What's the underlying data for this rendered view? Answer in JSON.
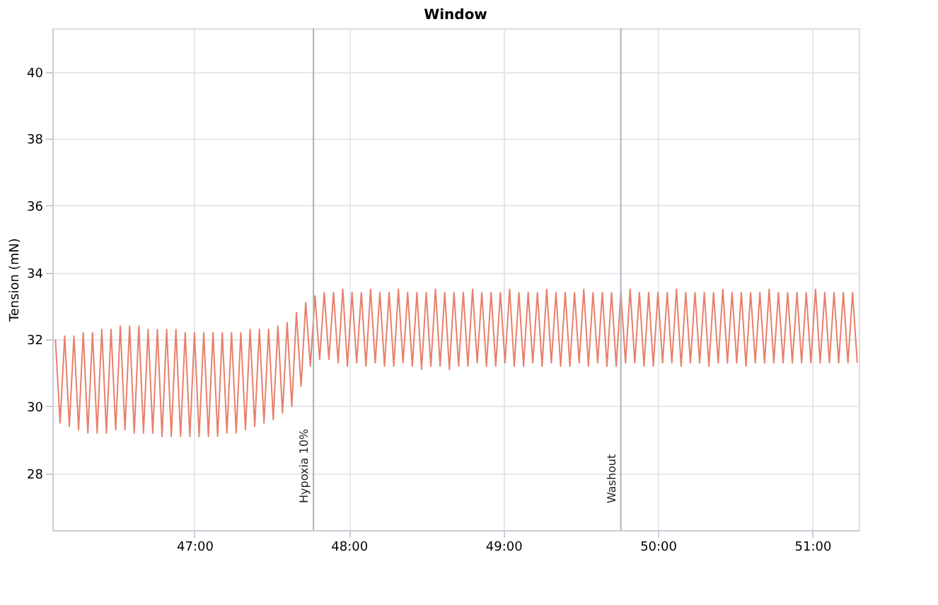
{
  "chart_data": {
    "type": "line",
    "title": "Window",
    "ylabel": "Tension (mN)",
    "xlim": [
      46.08,
      51.3
    ],
    "ylim": [
      26.3,
      41.3
    ],
    "xticks": [
      {
        "value": 47,
        "label": "47:00"
      },
      {
        "value": 48,
        "label": "48:00"
      },
      {
        "value": 49,
        "label": "49:00"
      },
      {
        "value": 50,
        "label": "50:00"
      },
      {
        "value": 51,
        "label": "51:00"
      }
    ],
    "yticks": [
      28,
      30,
      32,
      34,
      36,
      38,
      40
    ],
    "grid": true,
    "marker": "none",
    "line_style": "solid",
    "ref_lines": [
      {
        "axis": "x",
        "value": 47.77,
        "label": "Hypoxia 10%",
        "color": "#aab4be"
      },
      {
        "axis": "x",
        "value": 49.76,
        "label": "Washout",
        "color": "#aab4be"
      }
    ],
    "series": [
      {
        "color": "#e8806a",
        "x": [
          46.1,
          46.13,
          46.16,
          46.19,
          46.22,
          46.25,
          46.28,
          46.31,
          46.34,
          46.37,
          46.4,
          46.43,
          46.46,
          46.49,
          46.52,
          46.55,
          46.58,
          46.61,
          46.64,
          46.67,
          46.7,
          46.73,
          46.76,
          46.79,
          46.82,
          46.85,
          46.88,
          46.91,
          46.94,
          46.97,
          47.0,
          47.03,
          47.06,
          47.09,
          47.12,
          47.15,
          47.18,
          47.21,
          47.24,
          47.27,
          47.3,
          47.33,
          47.36,
          47.39,
          47.42,
          47.45,
          47.48,
          47.51,
          47.54,
          47.57,
          47.6,
          47.63,
          47.66,
          47.69,
          47.72,
          47.75,
          47.78,
          47.81,
          47.84,
          47.87,
          47.9,
          47.93,
          47.96,
          47.99,
          48.02,
          48.05,
          48.08,
          48.11,
          48.14,
          48.17,
          48.2,
          48.23,
          48.26,
          48.29,
          48.32,
          48.35,
          48.38,
          48.41,
          48.44,
          48.47,
          48.5,
          48.53,
          48.56,
          48.59,
          48.62,
          48.65,
          48.68,
          48.71,
          48.74,
          48.77,
          48.8,
          48.83,
          48.86,
          48.89,
          48.92,
          48.95,
          48.98,
          49.01,
          49.04,
          49.07,
          49.1,
          49.13,
          49.16,
          49.19,
          49.22,
          49.25,
          49.28,
          49.31,
          49.34,
          49.37,
          49.4,
          49.43,
          49.46,
          49.49,
          49.52,
          49.55,
          49.58,
          49.61,
          49.64,
          49.67,
          49.7,
          49.73,
          49.76,
          49.79,
          49.82,
          49.85,
          49.88,
          49.91,
          49.94,
          49.97,
          50.0,
          50.03,
          50.06,
          50.09,
          50.12,
          50.15,
          50.18,
          50.21,
          50.24,
          50.27,
          50.3,
          50.33,
          50.36,
          50.39,
          50.42,
          50.45,
          50.48,
          50.51,
          50.54,
          50.57,
          50.6,
          50.63,
          50.66,
          50.69,
          50.72,
          50.75,
          50.78,
          50.81,
          50.84,
          50.87,
          50.9,
          50.93,
          50.96,
          50.99,
          51.02,
          51.05,
          51.08,
          51.11,
          51.14,
          51.17,
          51.2,
          51.23,
          51.26,
          51.29
        ],
        "values": [
          32.0,
          29.5,
          32.1,
          29.4,
          32.1,
          29.3,
          32.2,
          29.2,
          32.2,
          29.2,
          32.3,
          29.2,
          32.3,
          29.3,
          32.4,
          29.3,
          32.4,
          29.2,
          32.4,
          29.2,
          32.3,
          29.2,
          32.3,
          29.1,
          32.3,
          29.1,
          32.3,
          29.1,
          32.2,
          29.1,
          32.2,
          29.1,
          32.2,
          29.1,
          32.2,
          29.1,
          32.2,
          29.2,
          32.2,
          29.2,
          32.2,
          29.3,
          32.3,
          29.4,
          32.3,
          29.5,
          32.3,
          29.6,
          32.4,
          29.8,
          32.5,
          30.0,
          32.8,
          30.6,
          33.1,
          31.2,
          33.3,
          31.4,
          33.4,
          31.4,
          33.4,
          31.3,
          33.5,
          31.2,
          33.4,
          31.3,
          33.4,
          31.2,
          33.5,
          31.3,
          33.4,
          31.2,
          33.4,
          31.2,
          33.5,
          31.3,
          33.4,
          31.2,
          33.4,
          31.1,
          33.4,
          31.2,
          33.5,
          31.2,
          33.4,
          31.1,
          33.4,
          31.2,
          33.4,
          31.2,
          33.5,
          31.3,
          33.4,
          31.2,
          33.4,
          31.2,
          33.4,
          31.3,
          33.5,
          31.2,
          33.4,
          31.2,
          33.4,
          31.3,
          33.4,
          31.2,
          33.5,
          31.3,
          33.4,
          31.2,
          33.4,
          31.2,
          33.4,
          31.3,
          33.5,
          31.2,
          33.4,
          31.3,
          33.4,
          31.2,
          33.4,
          31.2,
          33.4,
          31.3,
          33.5,
          31.3,
          33.4,
          31.2,
          33.4,
          31.2,
          33.4,
          31.3,
          33.4,
          31.3,
          33.5,
          31.2,
          33.4,
          31.3,
          33.4,
          31.3,
          33.4,
          31.2,
          33.4,
          31.3,
          33.5,
          31.3,
          33.4,
          31.3,
          33.4,
          31.2,
          33.4,
          31.3,
          33.4,
          31.3,
          33.5,
          31.3,
          33.4,
          31.3,
          33.4,
          31.3,
          33.4,
          31.3,
          33.4,
          31.3,
          33.5,
          31.3,
          33.4,
          31.3,
          33.4,
          31.3,
          33.4,
          31.3,
          33.4,
          31.3
        ]
      }
    ]
  }
}
